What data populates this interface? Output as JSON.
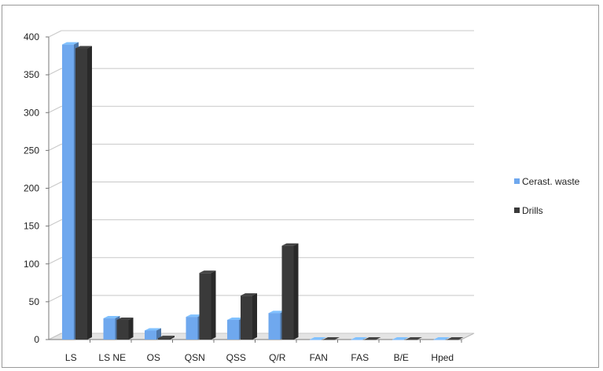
{
  "chart_data": {
    "type": "bar",
    "categories": [
      "LS",
      "LS NE",
      "OS",
      "QSN",
      "QSS",
      "Q/R",
      "FAN",
      "FAS",
      "B/E",
      "Hped"
    ],
    "series": [
      {
        "name": "Cerast. waste",
        "color": "#6fa8ee",
        "values": [
          390,
          28,
          12,
          30,
          26,
          35,
          0,
          0,
          0,
          0
        ]
      },
      {
        "name": "Drills",
        "color": "#3a3a3a",
        "values": [
          385,
          26,
          2,
          88,
          58,
          124,
          0,
          0,
          0,
          0
        ]
      }
    ],
    "y_ticks": [
      "0",
      "50",
      "100",
      "150",
      "200",
      "250",
      "300",
      "350",
      "400"
    ],
    "ylim": [
      0,
      400
    ],
    "grid": true,
    "legend_position": "right",
    "title": "",
    "xlabel": "",
    "ylabel": ""
  }
}
